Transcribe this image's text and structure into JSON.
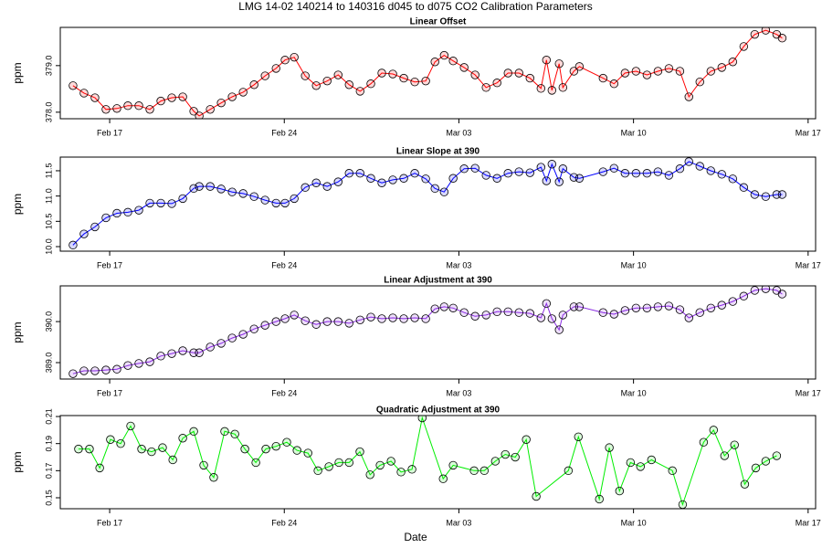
{
  "title": "LMG   14-02    140214 to 140316    d045 to d075   CO2 Calibration Parameters",
  "xlabel": "Date",
  "chart_data": [
    {
      "type": "line",
      "title": "Linear Offset",
      "ylabel": "ppm",
      "color": "#ff0000",
      "marker_edge": "#000000",
      "xlim": [
        46.02,
        76.3
      ],
      "xticks": [
        {
          "value": 48,
          "label": "Feb 17"
        },
        {
          "value": 55,
          "label": "Feb 24"
        },
        {
          "value": 62,
          "label": "Mar 03"
        },
        {
          "value": 69,
          "label": "Mar 10"
        },
        {
          "value": 76,
          "label": "Mar 17"
        }
      ],
      "ylim": [
        377.86,
        379.82
      ],
      "yticks": [
        {
          "value": 378,
          "label": "378.0"
        },
        {
          "value": 379,
          "label": "379.0"
        }
      ],
      "x": [
        46.53,
        46.97,
        47.41,
        47.85,
        48.29,
        48.73,
        49.17,
        49.61,
        50.05,
        50.49,
        50.93,
        51.37,
        51.59,
        52.03,
        52.47,
        52.91,
        53.35,
        53.79,
        54.23,
        54.67,
        55.03,
        55.4,
        55.84,
        56.28,
        56.72,
        57.16,
        57.6,
        58.04,
        58.47,
        58.91,
        59.35,
        59.79,
        60.23,
        60.67,
        61.04,
        61.41,
        61.77,
        62.21,
        62.65,
        63.09,
        63.53,
        63.97,
        64.41,
        64.85,
        65.29,
        65.51,
        65.73,
        66.02,
        66.17,
        66.61,
        66.83,
        67.78,
        68.22,
        68.66,
        69.1,
        69.54,
        69.98,
        70.42,
        70.86,
        71.22,
        71.66,
        72.1,
        72.54,
        72.98,
        73.42,
        73.86,
        74.3,
        74.74,
        74.96
      ],
      "values": [
        378.57,
        378.41,
        378.31,
        378.06,
        378.08,
        378.14,
        378.14,
        378.06,
        378.24,
        378.31,
        378.33,
        378.02,
        377.92,
        378.06,
        378.2,
        378.33,
        378.43,
        378.59,
        378.78,
        378.94,
        379.12,
        379.18,
        378.78,
        378.57,
        378.67,
        378.8,
        378.59,
        378.45,
        378.61,
        378.84,
        378.82,
        378.73,
        378.65,
        378.67,
        379.08,
        379.22,
        379.1,
        378.96,
        378.8,
        378.53,
        378.63,
        378.84,
        378.84,
        378.73,
        378.51,
        379.12,
        378.47,
        379.04,
        378.53,
        378.88,
        378.98,
        378.73,
        378.61,
        378.84,
        378.88,
        378.8,
        378.88,
        378.94,
        378.88,
        378.33,
        378.65,
        378.88,
        378.96,
        379.08,
        379.41,
        379.67,
        379.76,
        379.67,
        379.59
      ]
    },
    {
      "type": "line",
      "title": "Linear Slope at 390",
      "ylabel": "ppm",
      "color": "#0000ff",
      "marker_edge": "#000000",
      "xlim": [
        46.02,
        76.3
      ],
      "xticks": [
        {
          "value": 48,
          "label": "Feb 17"
        },
        {
          "value": 55,
          "label": "Feb 24"
        },
        {
          "value": 62,
          "label": "Mar 03"
        },
        {
          "value": 69,
          "label": "Mar 10"
        },
        {
          "value": 76,
          "label": "Mar 17"
        }
      ],
      "ylim": [
        9.91,
        11.77
      ],
      "yticks": [
        {
          "value": 10,
          "label": "10.0"
        },
        10.5,
        {
          "value": 11,
          "label": "11.0"
        },
        11.5
      ],
      "x": [
        46.53,
        46.97,
        47.41,
        47.85,
        48.29,
        48.73,
        49.17,
        49.61,
        50.05,
        50.49,
        50.93,
        51.37,
        51.59,
        52.03,
        52.47,
        52.91,
        53.35,
        53.79,
        54.23,
        54.67,
        55.03,
        55.4,
        55.84,
        56.28,
        56.72,
        57.16,
        57.6,
        58.04,
        58.47,
        58.91,
        59.35,
        59.79,
        60.23,
        60.67,
        61.04,
        61.41,
        61.77,
        62.21,
        62.65,
        63.09,
        63.53,
        63.97,
        64.41,
        64.85,
        65.29,
        65.51,
        65.73,
        66.02,
        66.17,
        66.61,
        66.83,
        67.78,
        68.22,
        68.66,
        69.1,
        69.54,
        69.98,
        70.42,
        70.86,
        71.22,
        71.66,
        72.1,
        72.54,
        72.98,
        73.42,
        73.86,
        74.3,
        74.74,
        74.96
      ],
      "values": [
        10.03,
        10.25,
        10.39,
        10.57,
        10.66,
        10.68,
        10.72,
        10.86,
        10.86,
        10.85,
        10.95,
        11.15,
        11.19,
        11.19,
        11.14,
        11.08,
        11.05,
        10.99,
        10.92,
        10.86,
        10.86,
        10.95,
        11.17,
        11.26,
        11.19,
        11.28,
        11.45,
        11.45,
        11.35,
        11.26,
        11.32,
        11.35,
        11.45,
        11.34,
        11.15,
        11.08,
        11.35,
        11.54,
        11.55,
        11.41,
        11.35,
        11.45,
        11.48,
        11.46,
        11.57,
        11.3,
        11.63,
        11.28,
        11.54,
        11.37,
        11.35,
        11.48,
        11.55,
        11.45,
        11.45,
        11.45,
        11.48,
        11.41,
        11.54,
        11.68,
        11.59,
        11.5,
        11.43,
        11.34,
        11.17,
        11.03,
        10.99,
        11.03,
        11.03
      ]
    },
    {
      "type": "line",
      "title": "Linear Adjustment at 390",
      "ylabel": "ppm",
      "color": "#8a2be2",
      "marker_edge": "#000000",
      "xlim": [
        46.02,
        76.3
      ],
      "xticks": [
        {
          "value": 48,
          "label": "Feb 17"
        },
        {
          "value": 55,
          "label": "Feb 24"
        },
        {
          "value": 62,
          "label": "Mar 03"
        },
        {
          "value": 69,
          "label": "Mar 10"
        },
        {
          "value": 76,
          "label": "Mar 17"
        }
      ],
      "ylim": [
        388.6,
        390.87
      ],
      "yticks": [
        {
          "value": 389,
          "label": "389.0"
        },
        {
          "value": 390,
          "label": "390.0"
        }
      ],
      "x": [
        46.53,
        46.97,
        47.41,
        47.85,
        48.29,
        48.73,
        49.17,
        49.61,
        50.05,
        50.49,
        50.93,
        51.37,
        51.59,
        52.03,
        52.47,
        52.91,
        53.35,
        53.79,
        54.23,
        54.67,
        55.03,
        55.4,
        55.84,
        56.28,
        56.72,
        57.16,
        57.6,
        58.04,
        58.47,
        58.91,
        59.35,
        59.79,
        60.23,
        60.67,
        61.04,
        61.41,
        61.77,
        62.21,
        62.65,
        63.09,
        63.53,
        63.97,
        64.41,
        64.85,
        65.29,
        65.51,
        65.73,
        66.02,
        66.17,
        66.61,
        66.83,
        67.78,
        68.22,
        68.66,
        69.1,
        69.54,
        69.98,
        70.42,
        70.86,
        71.22,
        71.66,
        72.1,
        72.54,
        72.98,
        73.42,
        73.86,
        74.3,
        74.74,
        74.96
      ],
      "values": [
        388.73,
        388.8,
        388.8,
        388.82,
        388.84,
        388.93,
        388.98,
        389.02,
        389.16,
        389.22,
        389.29,
        389.24,
        389.24,
        389.38,
        389.47,
        389.6,
        389.69,
        389.82,
        389.91,
        390.0,
        390.07,
        390.16,
        390.02,
        389.93,
        390.0,
        390.0,
        389.96,
        390.04,
        390.11,
        390.07,
        390.09,
        390.07,
        390.09,
        390.07,
        390.31,
        390.36,
        390.33,
        390.22,
        390.13,
        390.16,
        390.24,
        390.24,
        390.22,
        390.2,
        390.09,
        390.44,
        390.07,
        389.8,
        390.16,
        390.36,
        390.36,
        390.22,
        390.18,
        390.27,
        390.33,
        390.33,
        390.36,
        390.38,
        390.29,
        390.09,
        390.22,
        390.33,
        390.4,
        390.49,
        390.62,
        390.76,
        390.8,
        390.76,
        390.67
      ]
    },
    {
      "type": "line",
      "title": "Quadratic Adjustment at 390",
      "ylabel": "ppm",
      "color": "#00ee00",
      "marker_edge": "#000000",
      "xlim": [
        46.02,
        76.3
      ],
      "xticks": [
        {
          "value": 48,
          "label": "Feb 17"
        },
        {
          "value": 55,
          "label": "Feb 24"
        },
        {
          "value": 62,
          "label": "Mar 03"
        },
        {
          "value": 69,
          "label": "Mar 10"
        },
        {
          "value": 76,
          "label": "Mar 17"
        }
      ],
      "ylim": [
        0.1419,
        0.2107
      ],
      "yticks": [
        0.15,
        0.17,
        0.19,
        0.21
      ],
      "x": [
        46.75,
        47.19,
        47.6,
        48.03,
        48.44,
        48.84,
        49.28,
        49.68,
        50.12,
        50.53,
        50.93,
        51.37,
        51.77,
        52.17,
        52.61,
        53.02,
        53.42,
        53.86,
        54.26,
        54.67,
        55.1,
        55.51,
        55.95,
        56.35,
        56.79,
        57.19,
        57.6,
        58.03,
        58.44,
        58.84,
        59.28,
        59.68,
        60.12,
        60.53,
        61.37,
        61.77,
        62.61,
        63.02,
        63.46,
        63.86,
        64.26,
        64.7,
        65.1,
        66.39,
        66.79,
        67.63,
        68.03,
        68.44,
        68.88,
        69.28,
        69.72,
        70.56,
        70.97,
        71.81,
        72.21,
        72.65,
        73.05,
        73.46,
        73.9,
        74.3,
        74.74
      ],
      "values": [
        0.186,
        0.186,
        0.172,
        0.193,
        0.19,
        0.203,
        0.186,
        0.184,
        0.187,
        0.178,
        0.194,
        0.199,
        0.174,
        0.165,
        0.199,
        0.197,
        0.186,
        0.176,
        0.186,
        0.188,
        0.191,
        0.185,
        0.183,
        0.17,
        0.173,
        0.176,
        0.176,
        0.184,
        0.167,
        0.174,
        0.177,
        0.169,
        0.171,
        0.209,
        0.164,
        0.174,
        0.17,
        0.17,
        0.177,
        0.182,
        0.18,
        0.193,
        0.151,
        0.17,
        0.195,
        0.149,
        0.187,
        0.155,
        0.176,
        0.173,
        0.178,
        0.17,
        0.145,
        0.191,
        0.2,
        0.181,
        0.189,
        0.16,
        0.172,
        0.177,
        0.181
      ]
    }
  ]
}
